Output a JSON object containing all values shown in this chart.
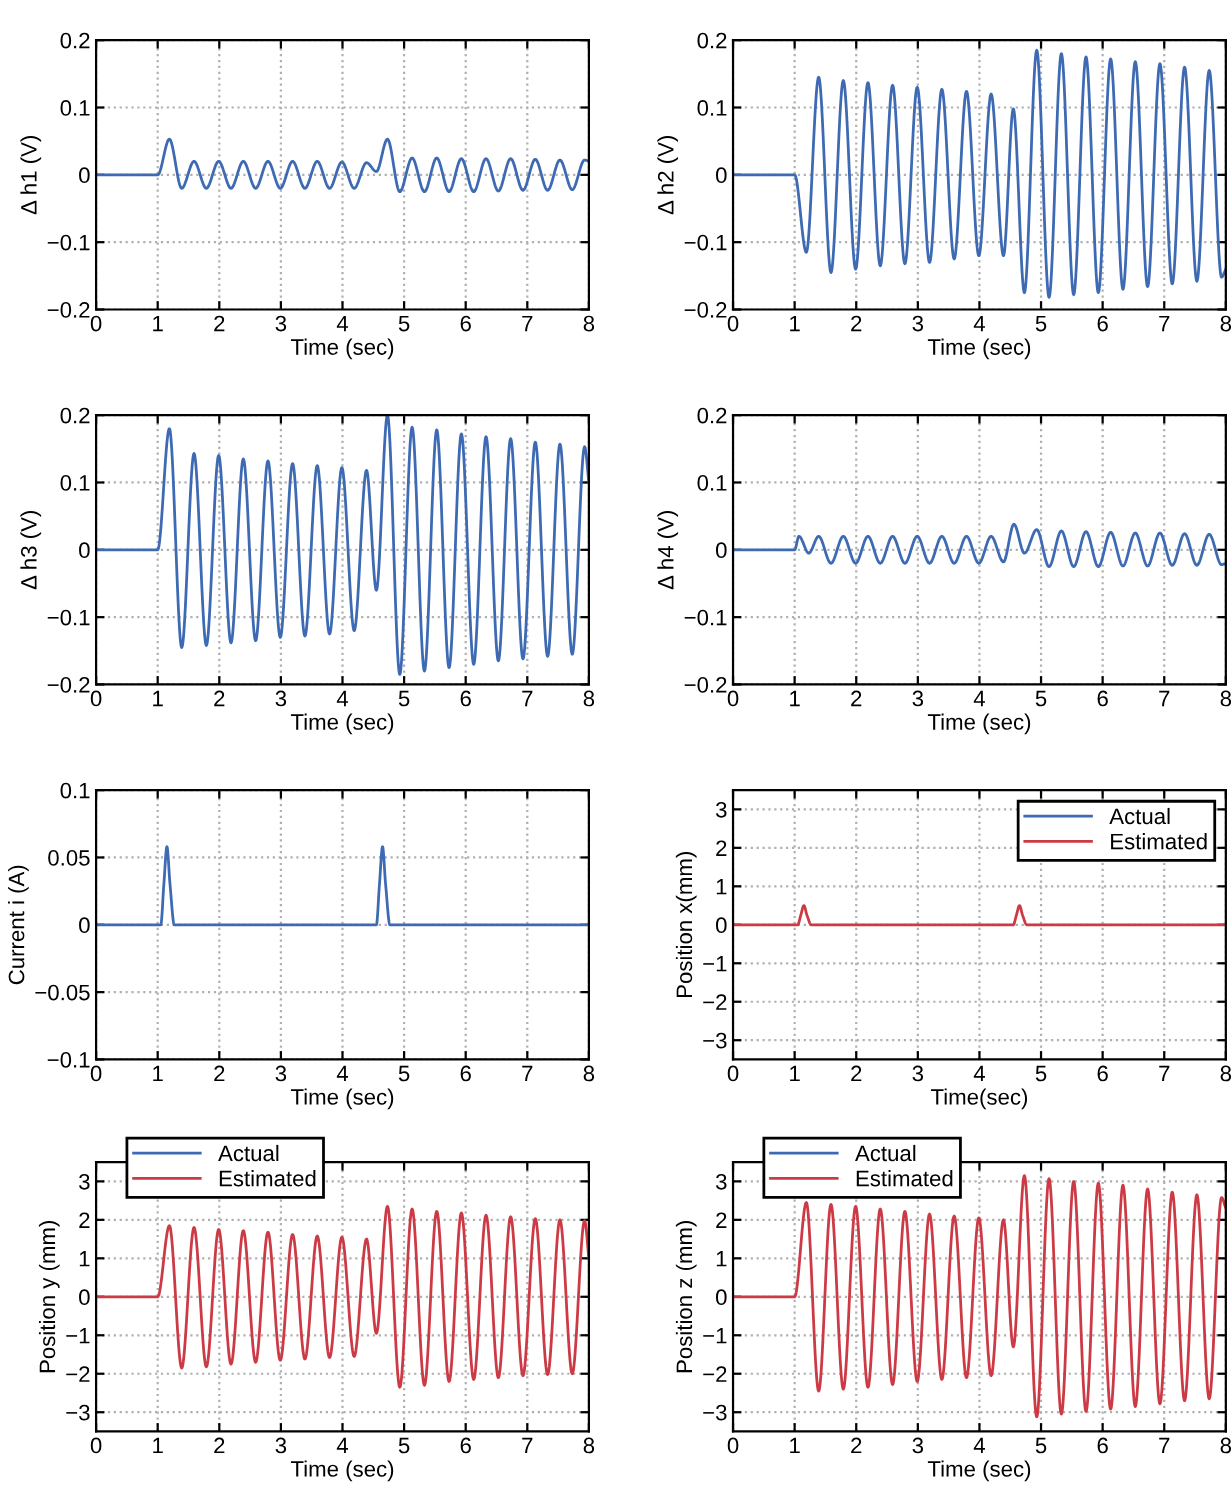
{
  "chart_data": [
    {
      "type": "line",
      "xlabel": "Time (sec)",
      "ylabel": "Δ h1 (V)",
      "xlim": [
        0,
        8
      ],
      "ylim": [
        -0.2,
        0.2
      ],
      "xticks": [
        0,
        1,
        2,
        3,
        4,
        5,
        6,
        7,
        8
      ],
      "yticks": [
        {
          "value": -0.2,
          "label": "−0.2"
        },
        {
          "value": -0.1,
          "label": "−0.1"
        },
        0,
        0.1,
        0.2
      ],
      "grid": true,
      "x": [
        0,
        1.0,
        1.19,
        1.39,
        1.59,
        1.79,
        1.99,
        2.19,
        2.39,
        2.59,
        2.79,
        2.99,
        3.19,
        3.39,
        3.59,
        3.79,
        3.99,
        4.19,
        4.39,
        4.55,
        4.73,
        4.93,
        5.13,
        5.33,
        5.53,
        5.73,
        5.93,
        6.13,
        6.33,
        6.53,
        6.73,
        6.93,
        7.13,
        7.33,
        7.53,
        7.73,
        7.93,
        8.0
      ],
      "series": [
        {
          "color": "#3d6ab3",
          "values": [
            0,
            0,
            0.053,
            -0.02,
            0.02,
            -0.02,
            0.02,
            -0.02,
            0.02,
            -0.02,
            0.02,
            -0.02,
            0.02,
            -0.02,
            0.02,
            -0.02,
            0.019,
            -0.02,
            0.018,
            0.005,
            0.053,
            -0.025,
            0.025,
            -0.025,
            0.025,
            -0.025,
            0.024,
            -0.025,
            0.024,
            -0.024,
            0.024,
            -0.023,
            0.023,
            -0.023,
            0.022,
            -0.022,
            0.022,
            0.02
          ]
        }
      ]
    },
    {
      "type": "line",
      "xlabel": "Time (sec)",
      "ylabel": "Δ h2 (V)",
      "xlim": [
        0,
        8
      ],
      "ylim": [
        -0.2,
        0.2
      ],
      "xticks": [
        0,
        1,
        2,
        3,
        4,
        5,
        6,
        7,
        8
      ],
      "yticks": [
        {
          "value": -0.2,
          "label": "−0.2"
        },
        {
          "value": -0.1,
          "label": "−0.1"
        },
        0,
        0.1,
        0.2
      ],
      "grid": true,
      "x": [
        0,
        1.0,
        1.19,
        1.39,
        1.59,
        1.79,
        1.99,
        2.19,
        2.39,
        2.59,
        2.79,
        2.99,
        3.19,
        3.39,
        3.59,
        3.79,
        3.99,
        4.19,
        4.39,
        4.55,
        4.73,
        4.93,
        5.13,
        5.33,
        5.53,
        5.73,
        5.93,
        6.13,
        6.33,
        6.53,
        6.73,
        6.93,
        7.13,
        7.33,
        7.53,
        7.73,
        7.93,
        8.0
      ],
      "series": [
        {
          "color": "#3d6ab3",
          "values": [
            0,
            0,
            -0.115,
            0.145,
            -0.145,
            0.14,
            -0.14,
            0.137,
            -0.135,
            0.133,
            -0.132,
            0.13,
            -0.13,
            0.127,
            -0.125,
            0.124,
            -0.12,
            0.12,
            -0.12,
            0.098,
            -0.175,
            0.185,
            -0.182,
            0.18,
            -0.178,
            0.175,
            -0.175,
            0.172,
            -0.17,
            0.168,
            -0.166,
            0.165,
            -0.162,
            0.16,
            -0.158,
            0.155,
            -0.152,
            -0.14
          ]
        }
      ]
    },
    {
      "type": "line",
      "xlabel": "Time (sec)",
      "ylabel": "Δ h3 (V)",
      "xlim": [
        0,
        8
      ],
      "ylim": [
        -0.2,
        0.2
      ],
      "xticks": [
        0,
        1,
        2,
        3,
        4,
        5,
        6,
        7,
        8
      ],
      "yticks": [
        {
          "value": -0.2,
          "label": "−0.2"
        },
        {
          "value": -0.1,
          "label": "−0.1"
        },
        0,
        0.1,
        0.2
      ],
      "grid": true,
      "x": [
        0,
        1.0,
        1.19,
        1.39,
        1.59,
        1.79,
        1.99,
        2.19,
        2.39,
        2.59,
        2.79,
        2.99,
        3.19,
        3.39,
        3.59,
        3.79,
        3.99,
        4.19,
        4.39,
        4.55,
        4.73,
        4.93,
        5.13,
        5.33,
        5.53,
        5.73,
        5.93,
        6.13,
        6.33,
        6.53,
        6.73,
        6.93,
        7.13,
        7.33,
        7.53,
        7.73,
        7.93,
        8.0
      ],
      "series": [
        {
          "color": "#3d6ab3",
          "values": [
            0,
            0,
            0.18,
            -0.145,
            0.143,
            -0.142,
            0.14,
            -0.138,
            0.135,
            -0.135,
            0.132,
            -0.13,
            0.128,
            -0.128,
            0.125,
            -0.125,
            0.122,
            -0.12,
            0.118,
            -0.06,
            0.2,
            -0.185,
            0.182,
            -0.18,
            0.178,
            -0.175,
            0.172,
            -0.17,
            0.168,
            -0.165,
            0.165,
            -0.162,
            0.16,
            -0.158,
            0.157,
            -0.155,
            0.153,
            0.1
          ]
        }
      ]
    },
    {
      "type": "line",
      "xlabel": "Time (sec)",
      "ylabel": "Δ h4 (V)",
      "xlim": [
        0,
        8
      ],
      "ylim": [
        -0.2,
        0.2
      ],
      "xticks": [
        0,
        1,
        2,
        3,
        4,
        5,
        6,
        7,
        8
      ],
      "yticks": [
        {
          "value": -0.2,
          "label": "−0.2"
        },
        {
          "value": -0.1,
          "label": "−0.1"
        },
        0,
        0.1,
        0.2
      ],
      "grid": true,
      "x": [
        0,
        1.0,
        1.07,
        1.23,
        1.39,
        1.59,
        1.79,
        1.99,
        2.19,
        2.39,
        2.59,
        2.79,
        2.99,
        3.19,
        3.39,
        3.59,
        3.79,
        3.99,
        4.19,
        4.39,
        4.56,
        4.73,
        4.93,
        5.13,
        5.33,
        5.53,
        5.73,
        5.93,
        6.13,
        6.33,
        6.53,
        6.73,
        6.93,
        7.13,
        7.33,
        7.53,
        7.73,
        7.93,
        8.0
      ],
      "series": [
        {
          "color": "#3d6ab3",
          "values": [
            0,
            0,
            0.02,
            -0.005,
            0.02,
            -0.02,
            0.02,
            -0.02,
            0.02,
            -0.02,
            0.02,
            -0.02,
            0.02,
            -0.02,
            0.02,
            -0.02,
            0.02,
            -0.02,
            0.02,
            -0.018,
            0.038,
            -0.005,
            0.03,
            -0.025,
            0.028,
            -0.025,
            0.027,
            -0.025,
            0.026,
            -0.024,
            0.025,
            -0.024,
            0.025,
            -0.023,
            0.024,
            -0.023,
            0.023,
            -0.022,
            -0.02
          ]
        }
      ]
    },
    {
      "type": "line",
      "xlabel": "Time (sec)",
      "ylabel": "Current i (A)",
      "xlim": [
        0,
        8
      ],
      "ylim": [
        -0.1,
        0.1
      ],
      "xticks": [
        0,
        1,
        2,
        3,
        4,
        5,
        6,
        7,
        8
      ],
      "yticks": [
        {
          "value": -0.1,
          "label": "−0.1"
        },
        {
          "value": -0.05,
          "label": "−0.05"
        },
        0,
        0.05,
        0.1
      ],
      "grid": true,
      "x": [
        0,
        1.05,
        1.1,
        1.15,
        1.2,
        1.27,
        4.55,
        4.6,
        4.65,
        4.7,
        4.77,
        8
      ],
      "series": [
        {
          "color": "#3d6ab3",
          "values": [
            0,
            0,
            0.03,
            0.058,
            0.03,
            0,
            0,
            0.03,
            0.058,
            0.03,
            0,
            0
          ]
        }
      ]
    },
    {
      "type": "line",
      "xlabel": "Time(sec)",
      "ylabel": "Position x(mm)",
      "xlim": [
        0,
        8
      ],
      "ylim": [
        -3.5,
        3.5
      ],
      "xticks": [
        0,
        1,
        2,
        3,
        4,
        5,
        6,
        7,
        8
      ],
      "yticks": [
        {
          "value": -3,
          "label": "−3"
        },
        {
          "value": -2,
          "label": "−2"
        },
        {
          "value": -1,
          "label": "−1"
        },
        0,
        1,
        2,
        3
      ],
      "grid": true,
      "legend": "top right",
      "x": [
        0,
        1.05,
        1.1,
        1.15,
        1.2,
        1.27,
        4.55,
        4.6,
        4.65,
        4.7,
        4.77,
        8
      ],
      "series": [
        {
          "name": "Actual",
          "color": "#3d6ab3",
          "values": [
            null,
            null,
            null,
            null,
            null,
            null,
            null,
            null,
            null,
            null,
            null,
            null
          ]
        },
        {
          "name": "Estimated",
          "color": "#cc3b45",
          "values": [
            0,
            0,
            0.25,
            0.5,
            0.25,
            0,
            0,
            0.25,
            0.5,
            0.25,
            0,
            0
          ]
        }
      ]
    },
    {
      "type": "line",
      "xlabel": "Time (sec)",
      "ylabel": "Position y (mm)",
      "xlim": [
        0,
        8
      ],
      "ylim": [
        -3.5,
        3.5
      ],
      "xticks": [
        0,
        1,
        2,
        3,
        4,
        5,
        6,
        7,
        8
      ],
      "yticks": [
        {
          "value": -3,
          "label": "−3"
        },
        {
          "value": -2,
          "label": "−2"
        },
        {
          "value": -1,
          "label": "−1"
        },
        0,
        1,
        2,
        3
      ],
      "grid": true,
      "legend": "top left",
      "x": [
        0,
        1.0,
        1.19,
        1.39,
        1.59,
        1.79,
        1.99,
        2.19,
        2.39,
        2.59,
        2.79,
        2.99,
        3.19,
        3.39,
        3.59,
        3.79,
        3.99,
        4.19,
        4.39,
        4.55,
        4.73,
        4.93,
        5.13,
        5.33,
        5.53,
        5.73,
        5.93,
        6.13,
        6.33,
        6.53,
        6.73,
        6.93,
        7.13,
        7.33,
        7.53,
        7.73,
        7.93,
        8.0
      ],
      "series": [
        {
          "name": "Actual",
          "color": "#3d6ab3",
          "values": [
            null,
            null,
            null,
            null,
            null,
            null,
            null,
            null,
            null,
            null,
            null,
            null,
            null,
            null,
            null,
            null,
            null,
            null,
            null,
            null,
            null,
            null,
            null,
            null,
            null,
            null,
            null,
            null,
            null,
            null,
            null,
            null,
            null,
            null,
            null,
            null,
            null,
            null
          ]
        },
        {
          "name": "Estimated",
          "color": "#cc3b45",
          "values": [
            0,
            0,
            1.85,
            -1.85,
            1.8,
            -1.82,
            1.75,
            -1.75,
            1.72,
            -1.7,
            1.68,
            -1.65,
            1.62,
            -1.62,
            1.58,
            -1.58,
            1.55,
            -1.55,
            1.5,
            -0.95,
            2.35,
            -2.35,
            2.28,
            -2.3,
            2.22,
            -2.2,
            2.18,
            -2.15,
            2.12,
            -2.1,
            2.08,
            -2.05,
            2.03,
            -2.02,
            2.0,
            -2.0,
            1.98,
            1.0
          ]
        }
      ]
    },
    {
      "type": "line",
      "xlabel": "Time (sec)",
      "ylabel": "Position z (mm)",
      "xlim": [
        0,
        8
      ],
      "ylim": [
        -3.5,
        3.5
      ],
      "xticks": [
        0,
        1,
        2,
        3,
        4,
        5,
        6,
        7,
        8
      ],
      "yticks": [
        {
          "value": -3,
          "label": "−3"
        },
        {
          "value": -2,
          "label": "−2"
        },
        {
          "value": -1,
          "label": "−1"
        },
        0,
        1,
        2,
        3
      ],
      "grid": true,
      "legend": "top left",
      "x": [
        0,
        1.0,
        1.19,
        1.39,
        1.59,
        1.79,
        1.99,
        2.19,
        2.39,
        2.59,
        2.79,
        2.99,
        3.19,
        3.39,
        3.59,
        3.79,
        3.99,
        4.19,
        4.39,
        4.55,
        4.73,
        4.93,
        5.13,
        5.33,
        5.53,
        5.73,
        5.93,
        6.13,
        6.33,
        6.53,
        6.73,
        6.93,
        7.13,
        7.33,
        7.53,
        7.73,
        7.93,
        8.0
      ],
      "series": [
        {
          "name": "Actual",
          "color": "#3d6ab3",
          "values": [
            null,
            null,
            null,
            null,
            null,
            null,
            null,
            null,
            null,
            null,
            null,
            null,
            null,
            null,
            null,
            null,
            null,
            null,
            null,
            null,
            null,
            null,
            null,
            null,
            null,
            null,
            null,
            null,
            null,
            null,
            null,
            null,
            null,
            null,
            null,
            null,
            null,
            null
          ]
        },
        {
          "name": "Estimated",
          "color": "#cc3b45",
          "values": [
            0,
            0,
            2.45,
            -2.45,
            2.4,
            -2.4,
            2.35,
            -2.35,
            2.28,
            -2.28,
            2.22,
            -2.2,
            2.15,
            -2.15,
            2.1,
            -2.1,
            2.05,
            -2.05,
            2.0,
            -1.3,
            3.15,
            -3.12,
            3.07,
            -3.05,
            3.0,
            -2.98,
            2.95,
            -2.92,
            2.9,
            -2.85,
            2.8,
            -2.78,
            2.72,
            -2.7,
            2.65,
            -2.65,
            2.58,
            2.3
          ]
        }
      ]
    }
  ]
}
